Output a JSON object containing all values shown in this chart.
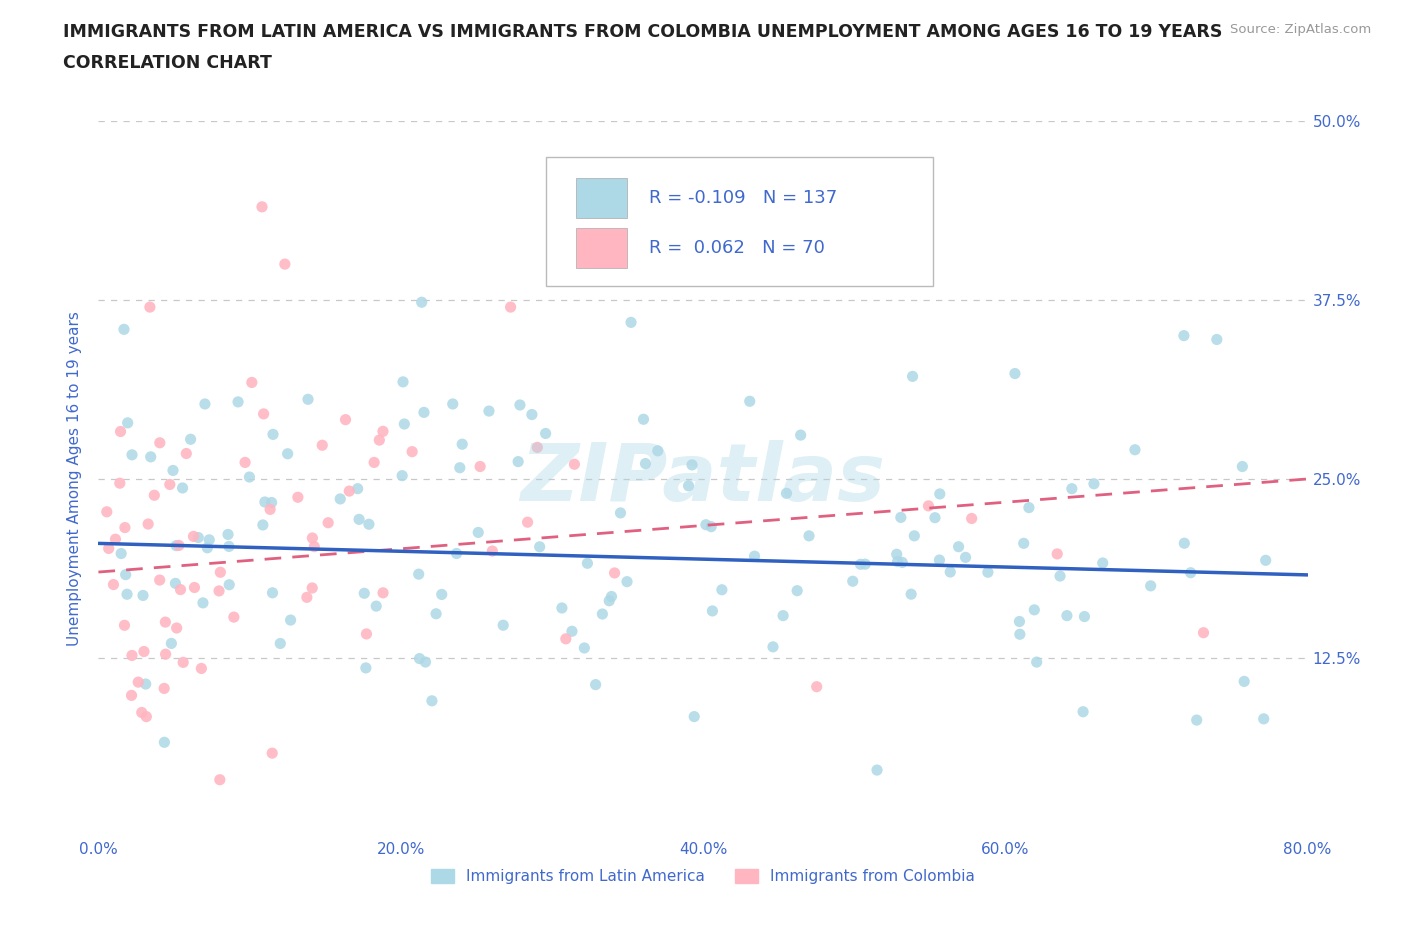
{
  "title_line1": "IMMIGRANTS FROM LATIN AMERICA VS IMMIGRANTS FROM COLOMBIA UNEMPLOYMENT AMONG AGES 16 TO 19 YEARS",
  "title_line2": "CORRELATION CHART",
  "source": "Source: ZipAtlas.com",
  "ylabel": "Unemployment Among Ages 16 to 19 years",
  "xlim": [
    0.0,
    0.8
  ],
  "ylim": [
    0.0,
    0.5
  ],
  "xtick_positions": [
    0.0,
    0.1,
    0.2,
    0.3,
    0.4,
    0.5,
    0.6,
    0.7,
    0.8
  ],
  "xticklabels": [
    "0.0%",
    "",
    "20.0%",
    "",
    "40.0%",
    "",
    "60.0%",
    "",
    "80.0%"
  ],
  "ytick_positions": [
    0.0,
    0.125,
    0.25,
    0.375,
    0.5
  ],
  "yticklabels": [
    "",
    "12.5%",
    "25.0%",
    "37.5%",
    "50.0%"
  ],
  "blue_dot_color": "#ADD8E6",
  "pink_dot_color": "#FFB6C1",
  "blue_line_color": "#3060C0",
  "pink_line_color": "#E06080",
  "text_color": "#4169CD",
  "grid_color": "#C8C8C8",
  "background_color": "#FFFFFF",
  "legend_label_blue": "Immigrants from Latin America",
  "legend_label_pink": "Immigrants from Colombia",
  "R_blue": -0.109,
  "N_blue": 137,
  "R_pink": 0.062,
  "N_pink": 70,
  "blue_trend_start_y": 0.205,
  "blue_trend_end_y": 0.183,
  "pink_trend_start_y": 0.185,
  "pink_trend_end_y": 0.25,
  "watermark": "ZIPatlas",
  "watermark_color": "#ADD8E6",
  "watermark_alpha": 0.4,
  "seed_blue": 77,
  "seed_pink": 88
}
